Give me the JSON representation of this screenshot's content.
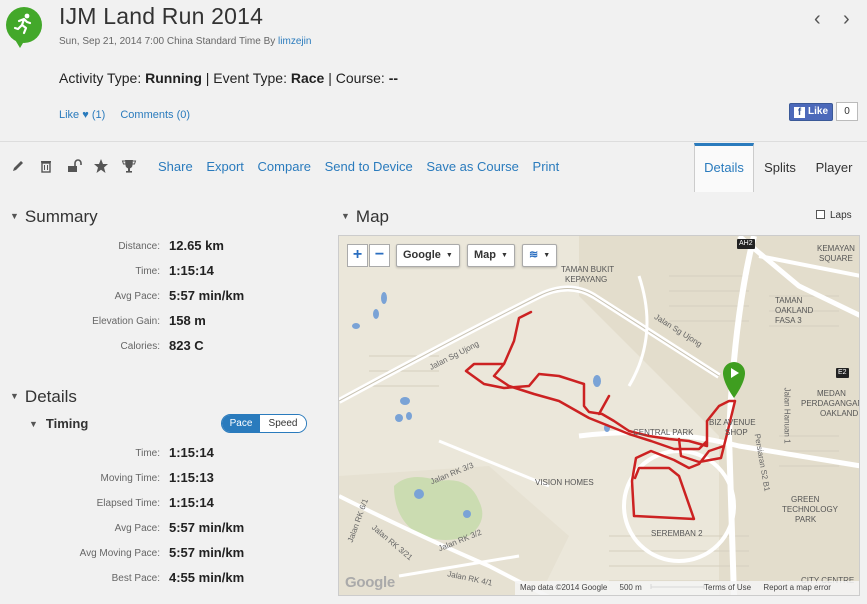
{
  "activity": {
    "title": "IJM Land Run 2014",
    "date": "Sun, Sep 21, 2014 7:00 China Standard Time By",
    "author": "limzejin",
    "type_label": "Activity Type:",
    "type_value": "Running",
    "event_label": "Event Type:",
    "event_value": "Race",
    "course_label": "Course:",
    "course_value": "--"
  },
  "social": {
    "like": "Like ♥ (1)",
    "comments": "Comments (0)",
    "fb_like": "Like",
    "fb_count": "0"
  },
  "icons": [
    "pencil-icon",
    "trash-icon",
    "unlock-icon",
    "star-icon",
    "trophy-icon"
  ],
  "actions": [
    "Share",
    "Export",
    "Compare",
    "Send to Device",
    "Save as Course",
    "Print"
  ],
  "tabs": [
    "Details",
    "Splits",
    "Player"
  ],
  "summary": {
    "heading": "Summary",
    "rows": [
      {
        "label": "Distance:",
        "value": "12.65 km"
      },
      {
        "label": "Time:",
        "value": "1:15:14"
      },
      {
        "label": "Avg Pace:",
        "value": "5:57 min/km"
      },
      {
        "label": "Elevation Gain:",
        "value": "158 m"
      },
      {
        "label": "Calories:",
        "value": "823 C"
      }
    ]
  },
  "details": {
    "heading": "Details",
    "timing_heading": "Timing",
    "toggle_on": "Pace",
    "toggle_off": "Speed",
    "rows": [
      {
        "label": "Time:",
        "value": "1:15:14"
      },
      {
        "label": "Moving Time:",
        "value": "1:15:13"
      },
      {
        "label": "Elapsed Time:",
        "value": "1:15:14"
      },
      {
        "label": "Avg Pace:",
        "value": "5:57 min/km"
      },
      {
        "label": "Avg Moving Pace:",
        "value": "5:57 min/km"
      },
      {
        "label": "Best Pace:",
        "value": "4:55 min/km"
      }
    ]
  },
  "map": {
    "heading": "Map",
    "laps_label": "Laps",
    "zoom_in": "+",
    "zoom_out": "−",
    "provider": "Google",
    "map_type": "Map",
    "labels": {
      "taman_bukit": "TAMAN BUKIT",
      "kepayang": "KEPAYANG",
      "kemayan": "KEMAYAN",
      "square": "SQUARE",
      "taman_oakland": "TAMAN",
      "oakland": "OAKLAND",
      "fasa3": "FASA 3",
      "medan": "MEDAN",
      "perdagangan": "PERDAGANGAN",
      "oakland2": "OAKLAND",
      "central_park": "CENTRAL PARK",
      "biz_avenue": "BIZ AVENUE",
      "shop": "SHOP",
      "vision_homes": "VISION HOMES",
      "green_tech": "GREEN",
      "technology": "TECHNOLOGY",
      "park": "PARK",
      "seremban2": "SEREMBAN 2",
      "city_centre": "CITY CENTRE",
      "jalan_sg_ujong_1": "Jalan Sg Ujong",
      "jalan_sg_ujong_2": "Jalan Sg Ujong",
      "jalan_rk33": "Jalan RK 3/3",
      "jalan_rk32": "Jalan RK 3/2",
      "jalan_rk321": "Jalan RK 3/21",
      "jalan_rk4": "Jalan RK 4/1",
      "jalan_hanyan": "Jalan Hanuan 1",
      "persiaran": "Persiaran S2 B1",
      "jalan_rk61": "Jalan RK 6/1",
      "ah2": "AH2",
      "e2": "E2"
    },
    "footer": {
      "data": "Map data ©2014 Google",
      "scale": "500 m",
      "terms": "Terms of Use",
      "report": "Report a map error"
    },
    "logo": "Google",
    "route_color": "#cc2222",
    "marker_color": "#3f9e20"
  }
}
